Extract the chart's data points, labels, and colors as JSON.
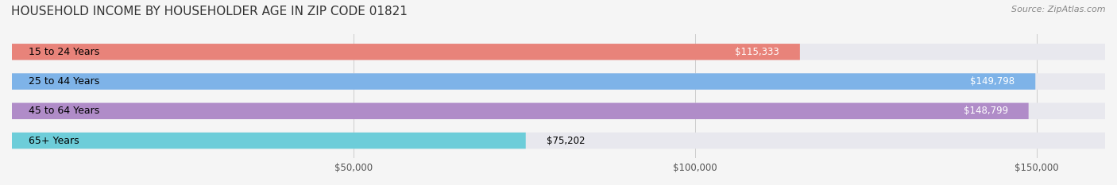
{
  "title": "HOUSEHOLD INCOME BY HOUSEHOLDER AGE IN ZIP CODE 01821",
  "source": "Source: ZipAtlas.com",
  "categories": [
    "15 to 24 Years",
    "25 to 44 Years",
    "45 to 64 Years",
    "65+ Years"
  ],
  "values": [
    115333,
    149798,
    148799,
    75202
  ],
  "bar_colors": [
    "#E8837A",
    "#7EB3E8",
    "#B08CC8",
    "#6DCDD9"
  ],
  "label_colors": [
    "white",
    "white",
    "white",
    "black"
  ],
  "value_labels": [
    "$115,333",
    "$149,798",
    "$148,799",
    "$75,202"
  ],
  "xlim": [
    0,
    160000
  ],
  "xticks": [
    0,
    50000,
    100000,
    150000
  ],
  "xticklabels": [
    "",
    "$50,000",
    "$100,000",
    "$150,000"
  ],
  "bg_color": "#f5f5f5",
  "bar_bg_color": "#e8e8ee",
  "title_fontsize": 11,
  "source_fontsize": 8,
  "label_fontsize": 9,
  "value_fontsize": 8.5
}
